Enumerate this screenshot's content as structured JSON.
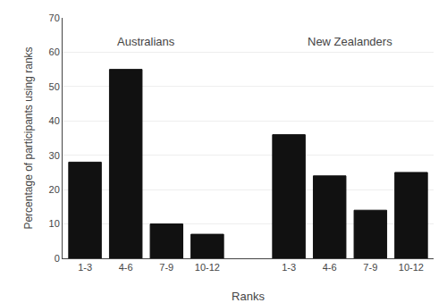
{
  "chart_data": {
    "type": "bar",
    "categories": [
      "1-3",
      "4-6",
      "7-9",
      "10-12",
      "1-3",
      "4-6",
      "7-9",
      "10-12"
    ],
    "values": [
      28,
      55,
      10,
      7,
      36,
      24,
      14,
      25
    ],
    "color": "#111111",
    "xlabel": "Ranks",
    "ylabel": "Percentage of participants using ranks",
    "ylim": [
      0,
      70
    ],
    "yticks": [
      0,
      10,
      20,
      30,
      40,
      50,
      60,
      70
    ],
    "grid": true,
    "annotations": [
      {
        "text": "Australians",
        "y": 63
      },
      {
        "text": "New Zealanders",
        "y": 63
      }
    ]
  }
}
